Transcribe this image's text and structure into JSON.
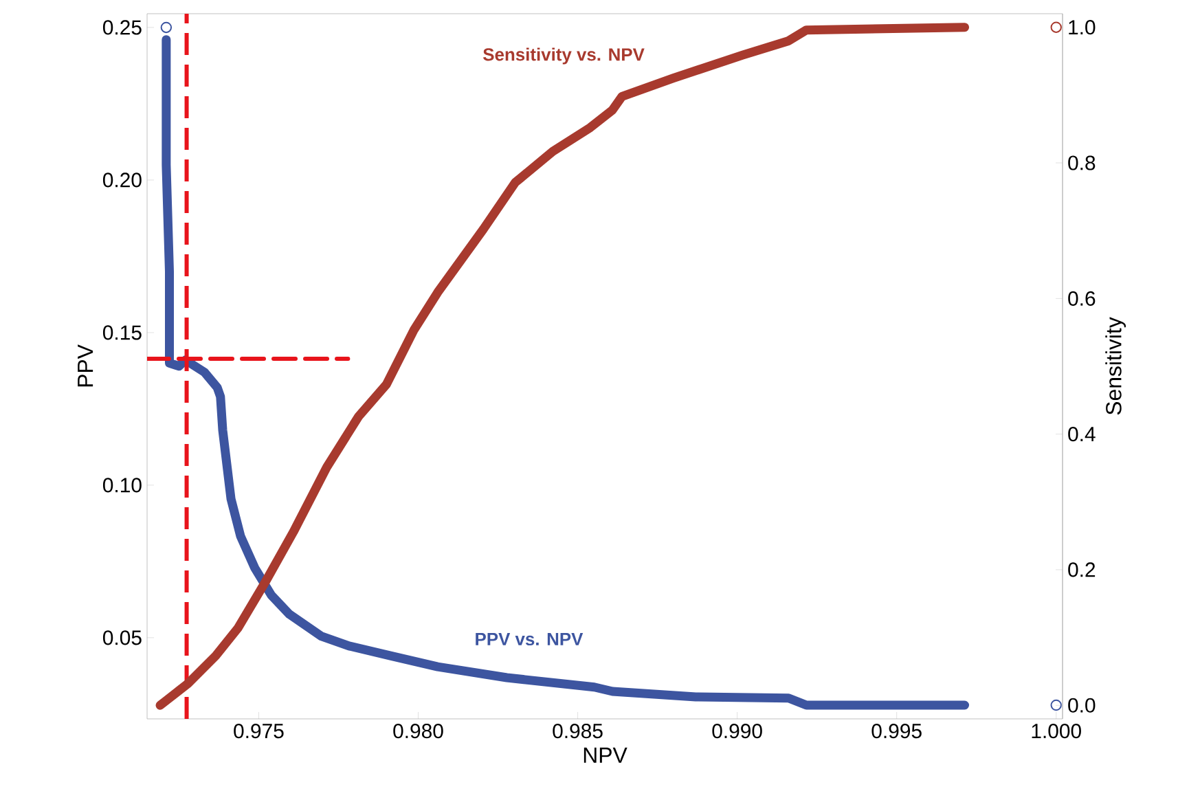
{
  "chart_data": {
    "type": "line",
    "xlabel": "NPV",
    "ylabel": "PPV",
    "y2label": "Sensitivity",
    "xlim": [
      0.9715,
      1.0002
    ],
    "ylim": [
      0.0234,
      0.2545
    ],
    "y2lim": [
      -0.02,
      1.02
    ],
    "xticks": [
      0.975,
      {
        "value": 0.98,
        "label": "0.980"
      },
      0.985,
      {
        "value": 0.99,
        "label": "0.990"
      },
      0.995,
      {
        "value": 1.0,
        "label": "1.000"
      }
    ],
    "yticks": [
      0.05,
      {
        "value": 0.1,
        "label": "0.10"
      },
      0.15,
      {
        "value": 0.2,
        "label": "0.20"
      },
      0.25
    ],
    "y2ticks": [
      {
        "value": 0,
        "label": "0.0"
      },
      0.2,
      0.4,
      0.6,
      0.8,
      {
        "value": 1,
        "label": "1.0"
      }
    ],
    "series": [
      {
        "name": "PPV vs. NPV",
        "color": "#3d55a0",
        "axis": "y",
        "x": [
          0.9721,
          0.9721,
          0.9722,
          0.9722,
          0.9725,
          0.9727,
          0.9733,
          0.9737,
          0.9738,
          0.97387,
          0.97413,
          0.97443,
          0.97487,
          0.97539,
          0.97596,
          0.97696,
          0.97783,
          0.97913,
          0.98061,
          0.98278,
          0.98552,
          0.98609,
          0.9887,
          0.99161,
          0.99217,
          0.99713
        ],
        "values": [
          0.246,
          0.205,
          0.17,
          0.14,
          0.139,
          0.141,
          0.137,
          0.132,
          0.129,
          0.118,
          0.0955,
          0.0833,
          0.073,
          0.064,
          0.0577,
          0.0505,
          0.0473,
          0.0441,
          0.0405,
          0.0369,
          0.0338,
          0.0324,
          0.0306,
          0.0302,
          0.0279,
          0.0279
        ]
      },
      {
        "name": "Sensitivity vs. NPV",
        "color": "#a83a2e",
        "axis": "y2",
        "x": [
          0.97191,
          0.97278,
          0.97365,
          0.97435,
          0.97522,
          0.97609,
          0.97713,
          0.97813,
          0.979,
          0.97987,
          0.98061,
          0.98204,
          0.98304,
          0.98422,
          0.98539,
          0.98609,
          0.98639,
          0.988,
          0.99017,
          0.99161,
          0.99217,
          0.99713
        ],
        "values": [
          0.0,
          0.032,
          0.073,
          0.114,
          0.183,
          0.256,
          0.351,
          0.426,
          0.473,
          0.554,
          0.609,
          0.702,
          0.771,
          0.817,
          0.852,
          0.878,
          0.898,
          0.925,
          0.959,
          0.98,
          0.996,
          1.0
        ]
      },
      {
        "type": "scatter",
        "color": "#3d55a0",
        "axis": "y",
        "x": [
          0.9721,
          1.0
        ],
        "values": [
          0.25,
          0.0279
        ]
      },
      {
        "type": "scatter",
        "color": "#a83a2e",
        "axis": "y2",
        "x": [
          1.0
        ],
        "values": [
          1.0
        ]
      },
      {
        "type": "line",
        "line_style": "dashed",
        "color": "#e8141b",
        "axis": "y",
        "x": [
          0.9715,
          0.9778
        ],
        "values": [
          0.1414,
          0.1414
        ]
      }
    ],
    "ref_lines": [
      {
        "axis": "x",
        "value": 0.97274,
        "color": "#e8141b",
        "line_style": "dashed"
      }
    ]
  }
}
